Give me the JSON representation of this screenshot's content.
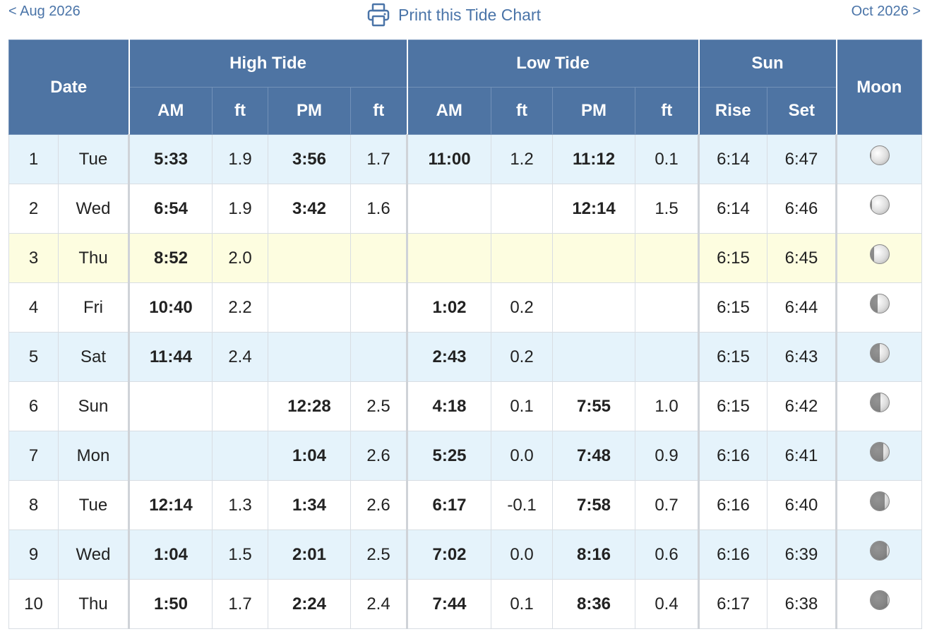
{
  "nav": {
    "prev_label": "< Aug 2026",
    "next_label": "Oct 2026 >",
    "print_label": "Print this Tide Chart"
  },
  "headers": {
    "date": "Date",
    "high_tide": "High Tide",
    "low_tide": "Low Tide",
    "sun": "Sun",
    "moon": "Moon",
    "am": "AM",
    "pm": "PM",
    "ft": "ft",
    "rise": "Rise",
    "set": "Set"
  },
  "rows": [
    {
      "day": "1",
      "dow": "Tue",
      "high_am": "5:33",
      "high_am_ft": "1.9",
      "high_pm": "3:56",
      "high_pm_ft": "1.7",
      "low_am": "11:00",
      "low_am_ft": "1.2",
      "low_pm": "11:12",
      "low_pm_ft": "0.1",
      "rise": "6:14",
      "set": "6:47",
      "moon_shade": 0.05
    },
    {
      "day": "2",
      "dow": "Wed",
      "high_am": "6:54",
      "high_am_ft": "1.9",
      "high_pm": "3:42",
      "high_pm_ft": "1.6",
      "low_am": "",
      "low_am_ft": "",
      "low_pm": "12:14",
      "low_pm_ft": "1.5",
      "rise": "6:14",
      "set": "6:46",
      "moon_shade": 0.1
    },
    {
      "day": "3",
      "dow": "Thu",
      "high_am": "8:52",
      "high_am_ft": "2.0",
      "high_pm": "",
      "high_pm_ft": "",
      "low_am": "",
      "low_am_ft": "",
      "low_pm": "",
      "low_pm_ft": "",
      "rise": "6:15",
      "set": "6:45",
      "moon_shade": 0.2
    },
    {
      "day": "4",
      "dow": "Fri",
      "high_am": "10:40",
      "high_am_ft": "2.2",
      "high_pm": "",
      "high_pm_ft": "",
      "low_am": "1:02",
      "low_am_ft": "0.2",
      "low_pm": "",
      "low_pm_ft": "",
      "rise": "6:15",
      "set": "6:44",
      "moon_shade": 0.4
    },
    {
      "day": "5",
      "dow": "Sat",
      "high_am": "11:44",
      "high_am_ft": "2.4",
      "high_pm": "",
      "high_pm_ft": "",
      "low_am": "2:43",
      "low_am_ft": "0.2",
      "low_pm": "",
      "low_pm_ft": "",
      "rise": "6:15",
      "set": "6:43",
      "moon_shade": 0.5
    },
    {
      "day": "6",
      "dow": "Sun",
      "high_am": "",
      "high_am_ft": "",
      "high_pm": "12:28",
      "high_pm_ft": "2.5",
      "low_am": "4:18",
      "low_am_ft": "0.1",
      "low_pm": "7:55",
      "low_pm_ft": "1.0",
      "rise": "6:15",
      "set": "6:42",
      "moon_shade": 0.55
    },
    {
      "day": "7",
      "dow": "Mon",
      "high_am": "",
      "high_am_ft": "",
      "high_pm": "1:04",
      "high_pm_ft": "2.6",
      "low_am": "5:25",
      "low_am_ft": "0.0",
      "low_pm": "7:48",
      "low_pm_ft": "0.9",
      "rise": "6:16",
      "set": "6:41",
      "moon_shade": 0.7
    },
    {
      "day": "8",
      "dow": "Tue",
      "high_am": "12:14",
      "high_am_ft": "1.3",
      "high_pm": "1:34",
      "high_pm_ft": "2.6",
      "low_am": "6:17",
      "low_am_ft": "-0.1",
      "low_pm": "7:58",
      "low_pm_ft": "0.7",
      "rise": "6:16",
      "set": "6:40",
      "moon_shade": 0.8
    },
    {
      "day": "9",
      "dow": "Wed",
      "high_am": "1:04",
      "high_am_ft": "1.5",
      "high_pm": "2:01",
      "high_pm_ft": "2.5",
      "low_am": "7:02",
      "low_am_ft": "0.0",
      "low_pm": "8:16",
      "low_pm_ft": "0.6",
      "rise": "6:16",
      "set": "6:39",
      "moon_shade": 0.9
    },
    {
      "day": "10",
      "dow": "Thu",
      "high_am": "1:50",
      "high_am_ft": "1.7",
      "high_pm": "2:24",
      "high_pm_ft": "2.4",
      "low_am": "7:44",
      "low_am_ft": "0.1",
      "low_pm": "8:36",
      "low_pm_ft": "0.4",
      "rise": "6:17",
      "set": "6:38",
      "moon_shade": 0.95
    }
  ],
  "today_index": 2,
  "moon_icon": "moon-phase-icon",
  "colors": {
    "header_bg": "#4e74a3",
    "link": "#4a74a8",
    "row_alt": "#e5f3fb",
    "row_today": "#fdfde0"
  }
}
